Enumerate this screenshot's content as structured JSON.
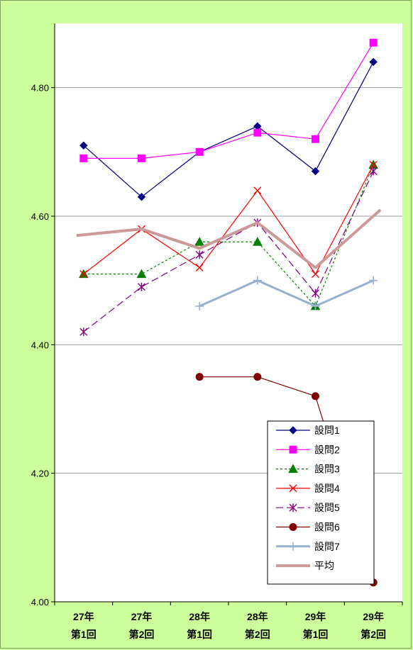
{
  "chart_data": {
    "type": "line",
    "title": "",
    "xlabel": "",
    "ylabel": "",
    "ylim": [
      4.0,
      4.9
    ],
    "yticks": [
      4.0,
      4.2,
      4.4,
      4.6,
      4.8
    ],
    "ytick_labels": [
      "4.00",
      "4.20",
      "4.40",
      "4.60",
      "4.80"
    ],
    "grid": "horizontal",
    "legend_position": "bottom-right",
    "background_color": "#ccff99",
    "plot_background_color": "#ffffff",
    "categories": [
      {
        "line1": "27年",
        "line2": "第1回"
      },
      {
        "line1": "27年",
        "line2": "第2回"
      },
      {
        "line1": "28年",
        "line2": "第1回"
      },
      {
        "line1": "28年",
        "line2": "第2回"
      },
      {
        "line1": "29年",
        "line2": "第1回"
      },
      {
        "line1": "29年",
        "line2": "第2回"
      }
    ],
    "series": [
      {
        "name": "設問1",
        "color": "#000080",
        "marker": "diamond",
        "dash": "solid",
        "width": 1.2,
        "values": [
          4.71,
          4.63,
          4.7,
          4.74,
          4.67,
          4.84
        ]
      },
      {
        "name": "設問2",
        "color": "#ff00ff",
        "marker": "square",
        "dash": "solid",
        "width": 1.2,
        "values": [
          4.69,
          4.69,
          4.7,
          4.73,
          4.72,
          4.87
        ]
      },
      {
        "name": "設問3",
        "color": "#008000",
        "marker": "triangle",
        "dash": "dotted",
        "width": 1.2,
        "values": [
          4.51,
          4.51,
          4.56,
          4.56,
          4.46,
          4.68
        ]
      },
      {
        "name": "設問4",
        "color": "#ff0000",
        "marker": "x",
        "dash": "solid",
        "width": 1.2,
        "values": [
          4.51,
          4.58,
          4.52,
          4.64,
          4.51,
          4.68
        ]
      },
      {
        "name": "設問5",
        "color": "#800080",
        "marker": "star",
        "dash": "dashed",
        "width": 1.2,
        "values": [
          4.42,
          4.49,
          4.54,
          4.59,
          4.48,
          4.67
        ]
      },
      {
        "name": "設問6",
        "color": "#800000",
        "marker": "circle",
        "dash": "solid",
        "width": 1.2,
        "values": [
          null,
          null,
          4.35,
          4.35,
          4.32,
          4.03
        ]
      },
      {
        "name": "設問7",
        "color": "#99b0cc",
        "marker": "plus",
        "dash": "solid",
        "width": 3,
        "values": [
          null,
          null,
          4.46,
          4.5,
          4.46,
          4.5
        ]
      },
      {
        "name": "平均",
        "color": "#cc9999",
        "marker": "none",
        "dash": "solid",
        "width": 4,
        "values": [
          4.57,
          4.58,
          4.55,
          4.59,
          4.52,
          4.61
        ]
      }
    ]
  }
}
